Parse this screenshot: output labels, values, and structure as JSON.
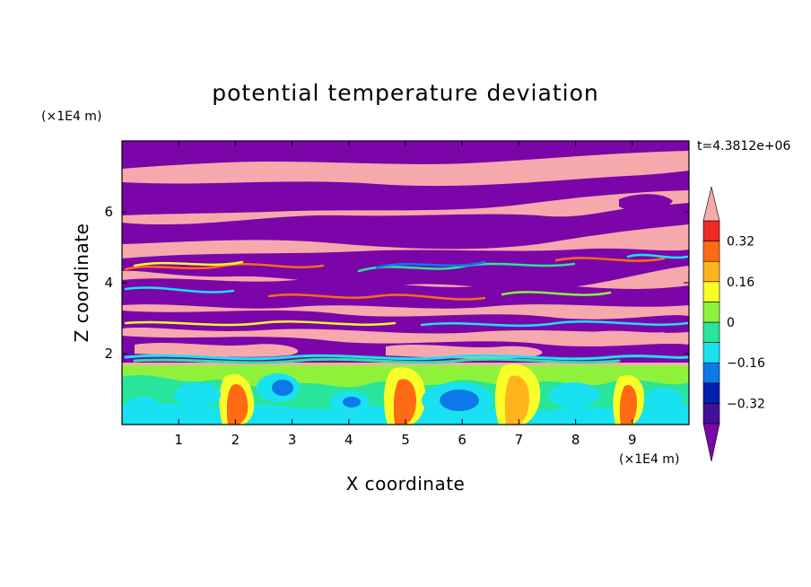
{
  "chart_data": {
    "type": "heatmap",
    "title": "potential temperature deviation",
    "xlabel": "X coordinate",
    "ylabel": "Z coordinate",
    "x_unit": "(×1E4 m)",
    "y_unit": "(×1E4 m)",
    "time_label": "t=4.3812e+06",
    "xlim": [
      0,
      10
    ],
    "ylim": [
      0,
      8
    ],
    "x_ticks": [
      "1",
      "2",
      "3",
      "4",
      "5",
      "6",
      "7",
      "8",
      "9"
    ],
    "y_ticks": [
      "2",
      "4",
      "6"
    ],
    "colorbar": {
      "levels": [
        -0.4,
        -0.32,
        -0.24,
        -0.16,
        -0.08,
        0,
        0.08,
        0.16,
        0.24,
        0.32,
        0.4
      ],
      "tick_labels": [
        "0.32",
        "0.16",
        "0",
        "−0.16",
        "−0.32"
      ],
      "tick_values": [
        0.32,
        0.16,
        0,
        -0.16,
        -0.32
      ],
      "colors": {
        "under": "#7b05a8",
        "bands": [
          "#44109a",
          "#0520b0",
          "#0d78e8",
          "#18e2f2",
          "#28e59b",
          "#8ff23a",
          "#f8ff28",
          "#ffb41e",
          "#ff6a14",
          "#ee2a24"
        ],
        "over": "#f6a9ad"
      }
    },
    "field_summary": [
      {
        "z_range": [
          4.5,
          8.0
        ],
        "pattern": "alternating stripes",
        "values": [
          "over",
          "under"
        ]
      },
      {
        "z_range": [
          2.0,
          4.5
        ],
        "pattern": "mixed filaments",
        "values": [
          "over",
          "under",
          "all bands"
        ]
      },
      {
        "z_range": [
          0.0,
          2.0
        ],
        "pattern": "convective eddies",
        "values": [
          -0.32,
          0.32
        ]
      }
    ]
  }
}
